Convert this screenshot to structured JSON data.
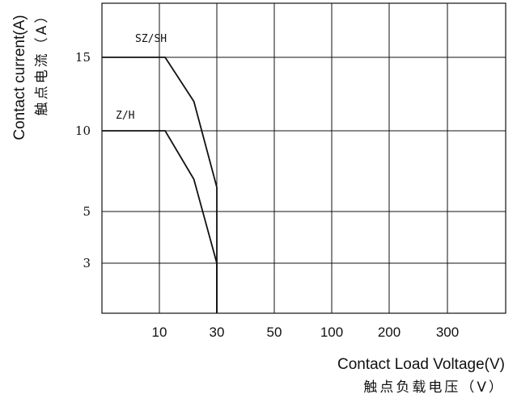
{
  "chart_data": {
    "type": "line",
    "xlabel": "Contact Load Voltage(V)",
    "xlabel_cn": "触点负载电压（V）",
    "ylabel": "Contact current(A)",
    "ylabel_cn": "触点电流（A）",
    "x_ticks": [
      "10",
      "30",
      "50",
      "100",
      "200",
      "300"
    ],
    "y_ticks": [
      15,
      10,
      5,
      3
    ],
    "x_range": [
      0,
      400
    ],
    "y_range": [
      0,
      18
    ],
    "grid": true,
    "series": [
      {
        "name": "SZ/SH",
        "points": [
          [
            0,
            15
          ],
          [
            12,
            15
          ],
          [
            22,
            12
          ],
          [
            30,
            6.5
          ],
          [
            30,
            0
          ]
        ]
      },
      {
        "name": "Z/H",
        "points": [
          [
            0,
            10
          ],
          [
            12,
            10
          ],
          [
            22,
            7
          ],
          [
            30,
            3
          ],
          [
            30,
            0
          ]
        ]
      }
    ]
  }
}
